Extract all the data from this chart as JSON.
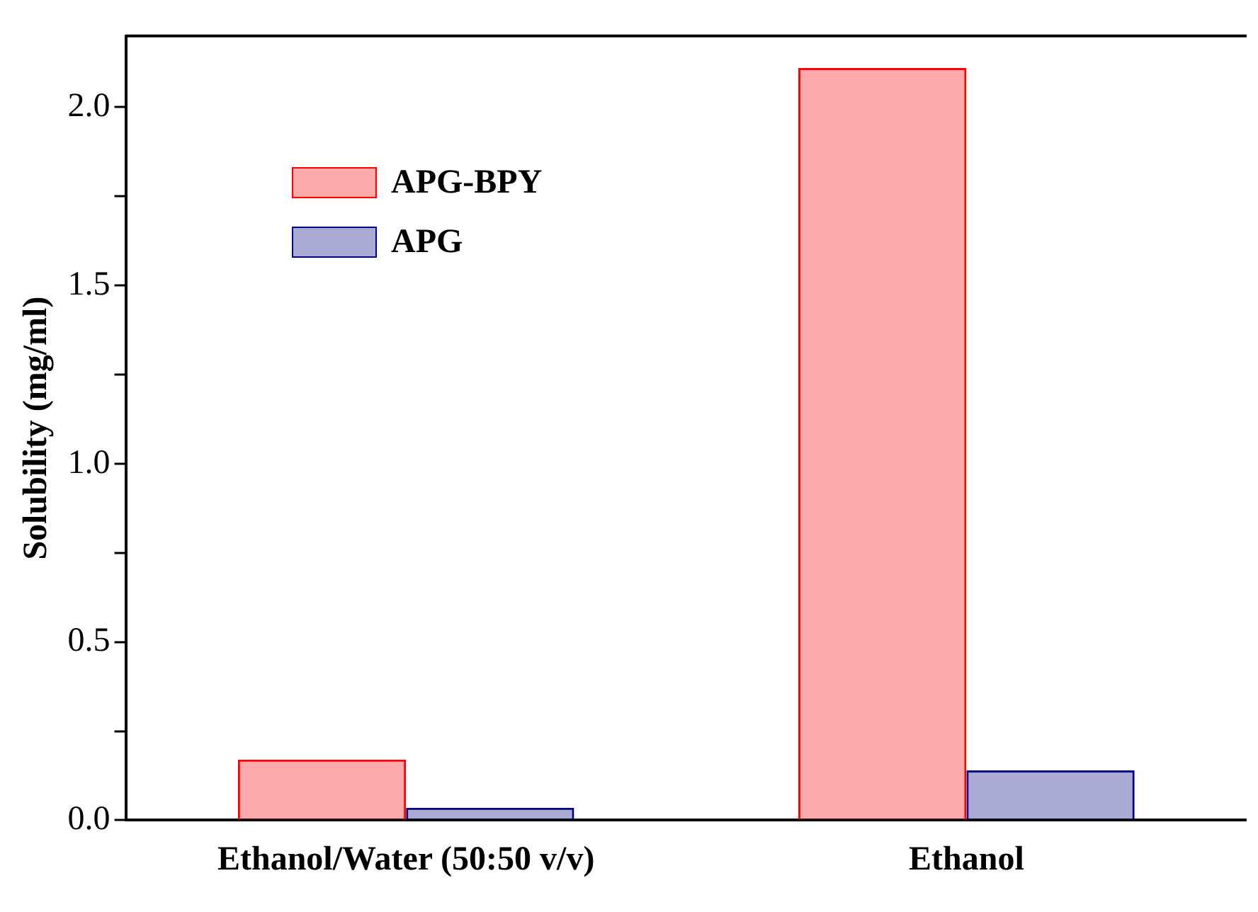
{
  "chart_data": {
    "type": "bar",
    "ylabel": "Solubility (mg/ml)",
    "categories": [
      "Ethanol/Water (50:50 v/v)",
      "Ethanol"
    ],
    "series": [
      {
        "name": "APG-BPY",
        "color": "#ff0000",
        "values": [
          0.17,
          2.11
        ]
      },
      {
        "name": "APG",
        "color": "#000080",
        "values": [
          0.035,
          0.14
        ]
      }
    ],
    "ylim": [
      0,
      2.2
    ],
    "yticks": [
      {
        "value": 0,
        "label": "0.0"
      },
      {
        "value": 0.25,
        "label": null
      },
      {
        "value": 0.5,
        "label": "0.5"
      },
      {
        "value": 0.75,
        "label": null
      },
      {
        "value": 1.0,
        "label": "1.0"
      },
      {
        "value": 1.25,
        "label": null
      },
      {
        "value": 1.5,
        "label": "1.5"
      },
      {
        "value": 1.75,
        "label": null
      },
      {
        "value": 2.0,
        "label": "2.0"
      }
    ],
    "grid": false,
    "legend": "top left"
  }
}
